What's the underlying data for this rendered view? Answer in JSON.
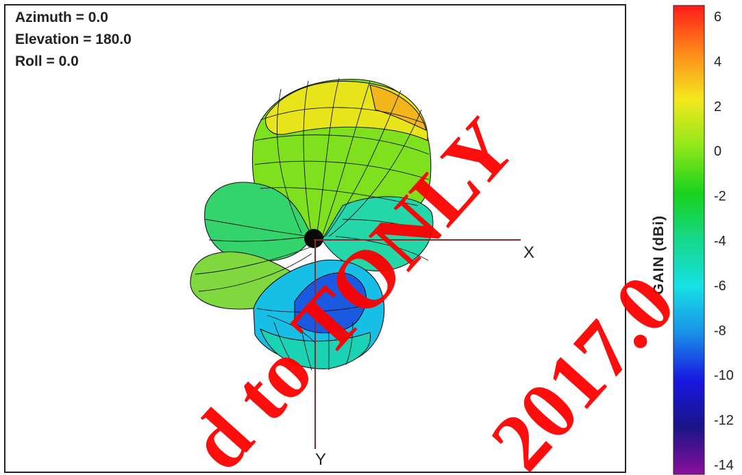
{
  "view": {
    "azimuth_text": "Azimuth = 0.0",
    "elevation_text": "Elevation = 180.0",
    "roll_text": "Roll = 0.0"
  },
  "axes": {
    "x_label": "X",
    "y_label": "Y"
  },
  "colorbar": {
    "title": "GAIN  (dBi)",
    "ticks": [
      "6",
      "4",
      "2",
      "0",
      "-2",
      "-4",
      "-6",
      "-8",
      "-10",
      "-12",
      "-14"
    ],
    "colors": [
      "#ff2a1a",
      "#ff8a1a",
      "#f4e81e",
      "#8fe81a",
      "#19d21c",
      "#15d88a",
      "#17e0e6",
      "#1a8fe8",
      "#1717e0",
      "#1a1488",
      "#8a109a"
    ]
  },
  "watermark": {
    "text_a": "d to TONLY",
    "text_b": "2017.0"
  },
  "chart_data": {
    "type": "surface",
    "title": "",
    "view": {
      "azimuth": 0.0,
      "elevation": 180.0,
      "roll": 0.0
    },
    "colorbar_label": "GAIN  (dBi)",
    "colorbar_range": [
      -14,
      6
    ],
    "colorbar_ticks": [
      6,
      4,
      2,
      0,
      -2,
      -4,
      -6,
      -8,
      -10,
      -12,
      -14
    ]
  }
}
